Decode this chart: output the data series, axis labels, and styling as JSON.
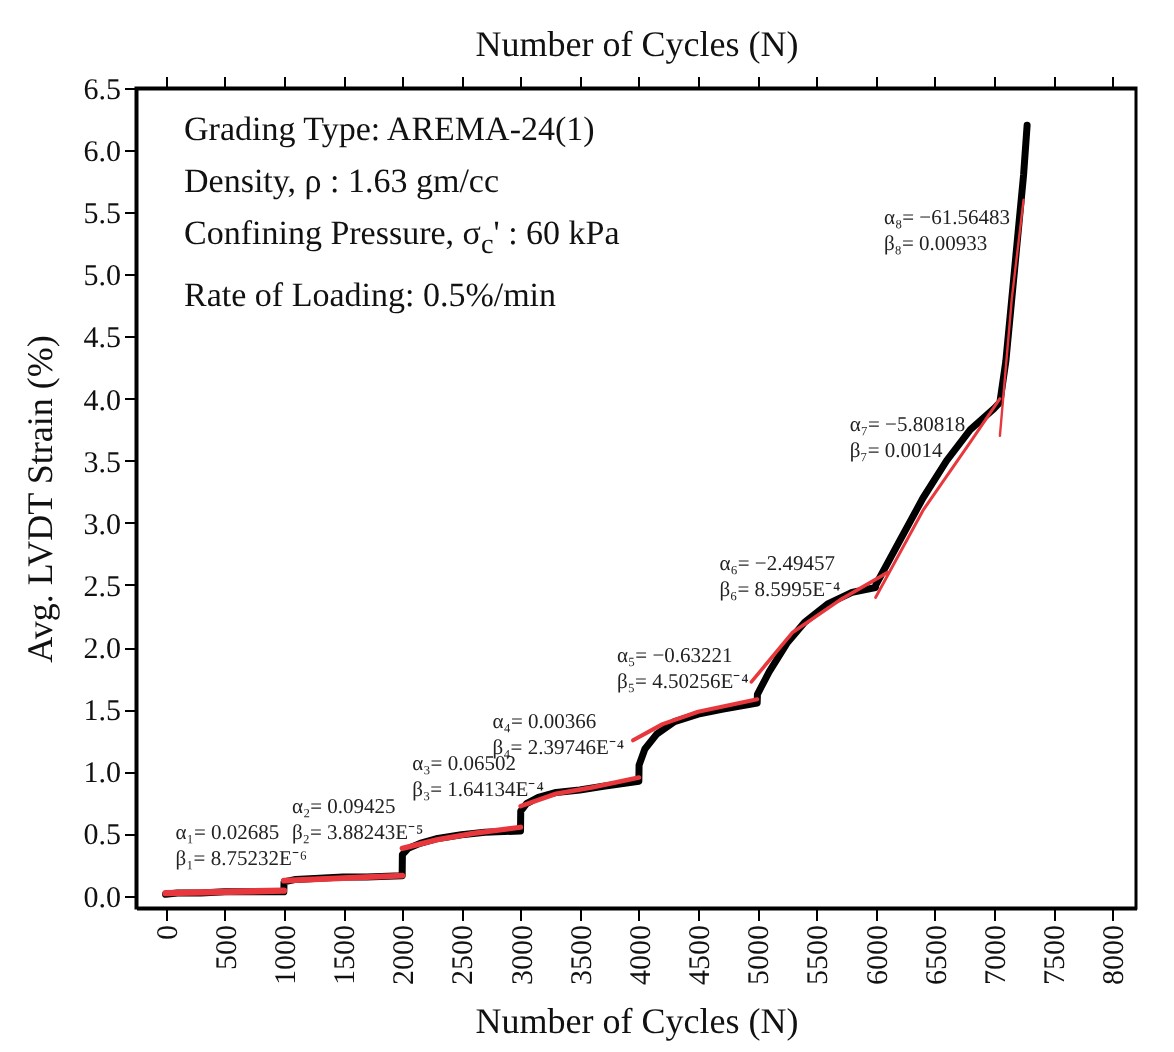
{
  "chart_data": {
    "type": "line",
    "xlabel": "Number of Cycles (N)",
    "ylabel": "Avg. LVDT Strain (%)",
    "x2label": "Number of Cycles (N)",
    "xlim": [
      -250,
      8200
    ],
    "ylim": [
      -0.1,
      6.5
    ],
    "xticks": [
      0,
      500,
      1000,
      1500,
      2000,
      2500,
      3000,
      3500,
      4000,
      4500,
      5000,
      5500,
      6000,
      6500,
      7000,
      7500,
      8000
    ],
    "yticks": [
      {
        "value": 0,
        "label": "0.0"
      },
      {
        "value": 0.5,
        "label": "0.5"
      },
      {
        "value": 1,
        "label": "1.0"
      },
      {
        "value": 1.5,
        "label": "1.5"
      },
      {
        "value": 2,
        "label": "2.0"
      },
      {
        "value": 2.5,
        "label": "2.5"
      },
      {
        "value": 3,
        "label": "3.0"
      },
      {
        "value": 3.5,
        "label": "3.5"
      },
      {
        "value": 4,
        "label": "4.0"
      },
      {
        "value": 4.5,
        "label": "4.5"
      },
      {
        "value": 5,
        "label": "5.0"
      },
      {
        "value": 5.5,
        "label": "5.5"
      },
      {
        "value": 6,
        "label": "6.0"
      },
      {
        "value": 6.5,
        "label": "6.5"
      }
    ],
    "grid": false,
    "marker": "none",
    "line_style": "solid",
    "series": [
      {
        "color": "#000000",
        "x": [
          0,
          100,
          300,
          500,
          700,
          900,
          999,
          1001,
          1100,
          1300,
          1500,
          1700,
          1999,
          2001,
          2050,
          2150,
          2300,
          2500,
          2700,
          2999,
          3001,
          3050,
          3150,
          3300,
          3500,
          3700,
          3999,
          4001,
          4050,
          4150,
          4300,
          4500,
          4700,
          4999,
          5001,
          5100,
          5250,
          5400,
          5600,
          5800,
          5999,
          6001,
          6200,
          6400,
          6600,
          6800,
          7000,
          7050,
          7100,
          7150,
          7200,
          7250,
          7280
        ],
        "values": [
          0.01,
          0.02,
          0.02,
          0.03,
          0.03,
          0.03,
          0.03,
          0.11,
          0.13,
          0.14,
          0.15,
          0.15,
          0.16,
          0.33,
          0.38,
          0.42,
          0.46,
          0.49,
          0.51,
          0.52,
          0.68,
          0.74,
          0.79,
          0.83,
          0.85,
          0.88,
          0.92,
          1.05,
          1.18,
          1.3,
          1.4,
          1.46,
          1.5,
          1.55,
          1.62,
          1.8,
          2.03,
          2.2,
          2.35,
          2.44,
          2.48,
          2.5,
          2.85,
          3.2,
          3.5,
          3.75,
          3.92,
          3.97,
          4.3,
          4.8,
          5.3,
          5.8,
          6.2
        ]
      },
      {
        "type": "line",
        "color": "#e8383d",
        "x": [
          0,
          1000
        ],
        "values": [
          0.02,
          0.04
        ]
      },
      {
        "type": "line",
        "color": "#e8383d",
        "x": [
          1000,
          2000
        ],
        "values": [
          0.12,
          0.16
        ]
      },
      {
        "type": "line",
        "color": "#e8383d",
        "x": [
          2000,
          2300,
          2600,
          3000
        ],
        "values": [
          0.38,
          0.45,
          0.5,
          0.55
        ]
      },
      {
        "type": "line",
        "color": "#e8383d",
        "x": [
          3000,
          3300,
          3600,
          4000
        ],
        "values": [
          0.72,
          0.82,
          0.87,
          0.95
        ]
      },
      {
        "type": "line",
        "color": "#e8383d",
        "x": [
          3950,
          4200,
          4500,
          5000
        ],
        "values": [
          1.25,
          1.38,
          1.48,
          1.58
        ]
      },
      {
        "type": "line",
        "color": "#e8383d",
        "x": [
          4950,
          5300,
          5700,
          6100
        ],
        "values": [
          1.72,
          2.12,
          2.38,
          2.6
        ]
      },
      {
        "type": "line",
        "color": "#e8383d",
        "x": [
          6000,
          6400,
          6800,
          7050
        ],
        "values": [
          2.4,
          3.1,
          3.65,
          4.0
        ]
      },
      {
        "type": "line",
        "color": "#e8383d",
        "x": [
          7050,
          7150,
          7250
        ],
        "values": [
          3.7,
          4.8,
          5.6
        ]
      }
    ],
    "annotations": [
      "Grading Type: AREMA-24(1)",
      "Density, ρ : 1.63 gm/cc",
      "Confining Pressure, σ$_{c}$' : 60 kPa",
      "Rate of Loading: 0.5%/min",
      "α₁= 0.02685",
      "β₁= 8.75232E⁻⁶",
      "α₂= 0.09425",
      "β₂= 3.88243E⁻⁵",
      "α₃= 0.06502",
      "β₃= 1.64134E⁻⁴",
      "α₄= 0.00366",
      "β₄= 2.39746E⁻⁴",
      "α₅= −0.63221",
      "β₅= 4.50256E⁻⁴",
      "α₆= −2.49457",
      "β₆= 8.5995E⁻⁴",
      "α₇= −5.80818",
      "β₇= 0.0014",
      "α₈= −61.56483",
      "β₈= 0.00933"
    ]
  }
}
